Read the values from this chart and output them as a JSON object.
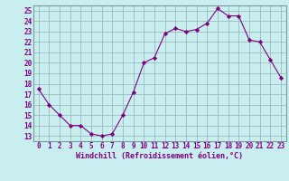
{
  "x": [
    0,
    1,
    2,
    3,
    4,
    5,
    6,
    7,
    8,
    9,
    10,
    11,
    12,
    13,
    14,
    15,
    16,
    17,
    18,
    19,
    20,
    21,
    22,
    23
  ],
  "y": [
    17.5,
    16.0,
    15.0,
    14.0,
    14.0,
    13.2,
    13.0,
    13.2,
    15.0,
    17.2,
    20.0,
    20.5,
    22.8,
    23.3,
    23.0,
    23.2,
    23.8,
    25.2,
    24.5,
    24.5,
    22.2,
    22.0,
    20.3,
    18.6
  ],
  "line_color": "#800080",
  "marker": "D",
  "marker_size": 2.2,
  "bg_color": "#c8eef0",
  "grid_color": "#9bbcbe",
  "xlabel": "Windchill (Refroidissement éolien,°C)",
  "ylabel_ticks": [
    13,
    14,
    15,
    16,
    17,
    18,
    19,
    20,
    21,
    22,
    23,
    24,
    25
  ],
  "xlim": [
    -0.5,
    23.5
  ],
  "ylim": [
    12.5,
    25.5
  ],
  "font_color": "#800080",
  "font_size": 5.5,
  "xlabel_font_size": 6.0
}
